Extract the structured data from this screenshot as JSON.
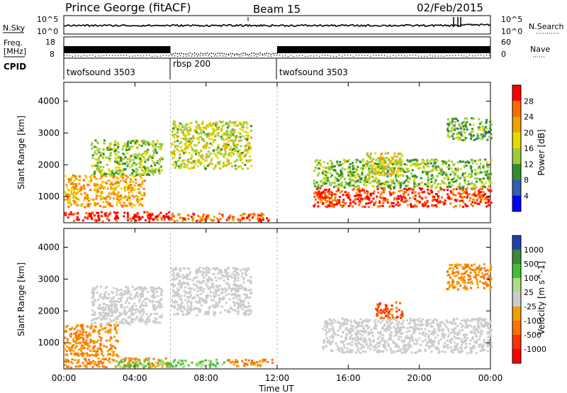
{
  "header": {
    "station": "Prince George (fitACF)",
    "beam": "Beam 15",
    "date": "02/Feb/2015"
  },
  "summary_panels": {
    "nsky_label": "N.Sky",
    "nsearch_label": "N.Search",
    "freq_label_line1": "Freq.",
    "freq_label_line2": "[MHz]",
    "nave_label": "Nave",
    "cpid_label": "CPID",
    "nsky_ticks": [
      "10^5",
      "10^0"
    ],
    "nsearch_ticks": [
      "10^5",
      "10^0"
    ],
    "freq_ticks": [
      "18",
      "8"
    ],
    "nave_ticks": [
      "60",
      "0"
    ]
  },
  "cpid_segments": [
    {
      "label": "twofsound 3503",
      "start_hour": 0,
      "end_hour": 6
    },
    {
      "label": "rbsp 200",
      "start_hour": 6,
      "end_hour": 12
    },
    {
      "label": "twofsound 3503",
      "start_hour": 12,
      "end_hour": 24
    }
  ],
  "power_colorbar": {
    "label": "Power [dB]",
    "ticks": [
      "28",
      "24",
      "20",
      "16",
      "12",
      "8",
      "4"
    ],
    "colors": [
      "#ff0000",
      "#ff6a00",
      "#f0a000",
      "#e8d800",
      "#9ccc3c",
      "#2f8f2f",
      "#2f5fb0",
      "#0000ff"
    ]
  },
  "velocity_colorbar": {
    "label": "Velocity [m s^-1]",
    "ticks": [
      "1000",
      "500",
      "100",
      "25",
      "-25",
      "-100",
      "-500",
      "-1000"
    ],
    "colors": [
      "#2040b0",
      "#3a8a3a",
      "#44c030",
      "#aadd88",
      "#cccccc",
      "#f0a000",
      "#ff7000",
      "#ff3000",
      "#ff0000"
    ]
  },
  "chart_data": [
    {
      "type": "heatmap",
      "name": "Power",
      "ylabel": "Slant Range [km]",
      "xlabel": "",
      "ylim": [
        180,
        4590
      ],
      "xlim": [
        0,
        24
      ],
      "y_ticks": [
        1000,
        2000,
        3000,
        4000
      ],
      "x_ticks": [
        0,
        4,
        8,
        12,
        16,
        20,
        24
      ],
      "regions": [
        {
          "t0": 0.0,
          "t1": 6.0,
          "r0": 250,
          "r1": 550,
          "value": 26
        },
        {
          "t0": 6.0,
          "t1": 11.5,
          "r0": 250,
          "r1": 500,
          "value": 22
        },
        {
          "t0": 0.0,
          "t1": 4.5,
          "r0": 700,
          "r1": 1700,
          "value": 18
        },
        {
          "t0": 1.5,
          "t1": 5.5,
          "r0": 1700,
          "r1": 2800,
          "value": 10
        },
        {
          "t0": 6.0,
          "t1": 10.5,
          "r0": 1900,
          "r1": 3400,
          "value": 12
        },
        {
          "t0": 14.0,
          "t1": 24.0,
          "r0": 700,
          "r1": 1300,
          "value": 24
        },
        {
          "t0": 14.0,
          "t1": 24.0,
          "r0": 1300,
          "r1": 2200,
          "value": 9
        },
        {
          "t0": 17.0,
          "t1": 19.0,
          "r0": 1700,
          "r1": 2400,
          "value": 14
        },
        {
          "t0": 21.5,
          "t1": 24.0,
          "r0": 2800,
          "r1": 3500,
          "value": 8
        }
      ]
    },
    {
      "type": "heatmap",
      "name": "Velocity",
      "ylabel": "Slant Range [km]",
      "xlabel": "Time UT",
      "ylim": [
        180,
        4590
      ],
      "xlim": [
        0,
        24
      ],
      "y_ticks": [
        1000,
        2000,
        3000,
        4000
      ],
      "x_ticks": [
        0,
        4,
        8,
        12,
        16,
        20,
        24
      ],
      "x_tick_labels": [
        "00:00",
        "04:00",
        "08:00",
        "12:00",
        "16:00",
        "20:00",
        "00:00"
      ],
      "regions": [
        {
          "t0": 0.0,
          "t1": 6.0,
          "r0": 250,
          "r1": 550,
          "value": -100
        },
        {
          "t0": 3.0,
          "t1": 9.0,
          "r0": 250,
          "r1": 500,
          "value": 100
        },
        {
          "t0": 9.0,
          "t1": 12.0,
          "r0": 300,
          "r1": 500,
          "value": -100
        },
        {
          "t0": 0.0,
          "t1": 3.0,
          "r0": 600,
          "r1": 1600,
          "value": -100
        },
        {
          "t0": 1.5,
          "t1": 5.5,
          "r0": 1600,
          "r1": 2800,
          "value": 0
        },
        {
          "t0": 6.0,
          "t1": 10.5,
          "r0": 1900,
          "r1": 3400,
          "value": 0
        },
        {
          "t0": 14.5,
          "t1": 24.0,
          "r0": 700,
          "r1": 1800,
          "value": 0
        },
        {
          "t0": 17.5,
          "t1": 19.0,
          "r0": 1800,
          "r1": 2300,
          "value": -500
        },
        {
          "t0": 21.5,
          "t1": 24.0,
          "r0": 2700,
          "r1": 3500,
          "value": -100
        }
      ]
    }
  ]
}
